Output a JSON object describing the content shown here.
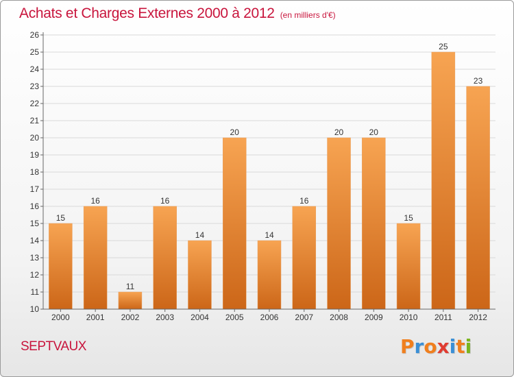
{
  "header": {
    "title": "Achats et Charges Externes 2000 à 2012",
    "subtitle": "(en milliers d'€)"
  },
  "footer": {
    "commune": "SEPTVAUX",
    "logo_text": "Proxiti",
    "logo_colors": [
      "#f07f1e",
      "#3a8fd6",
      "#f07f1e",
      "#e03c31",
      "#3a8fd6",
      "#f07f1e",
      "#7ab51d"
    ]
  },
  "colors": {
    "title": "#c8143c",
    "bar_light": "#f7a452",
    "bar_dark": "#cc6618",
    "grid": "#d9d9d9"
  },
  "chart_data": {
    "type": "bar",
    "categories": [
      "2000",
      "2001",
      "2002",
      "2003",
      "2004",
      "2005",
      "2006",
      "2007",
      "2008",
      "2009",
      "2010",
      "2011",
      "2012"
    ],
    "values": [
      15,
      16,
      11,
      16,
      14,
      20,
      14,
      16,
      20,
      20,
      15,
      25,
      23
    ],
    "ylim": [
      10,
      26
    ],
    "yticks": [
      10,
      11,
      12,
      13,
      14,
      15,
      16,
      17,
      18,
      19,
      20,
      21,
      22,
      23,
      24,
      25,
      26
    ],
    "grid": true,
    "legend": "none",
    "data_labels": true,
    "xlabel": "",
    "ylabel": ""
  }
}
